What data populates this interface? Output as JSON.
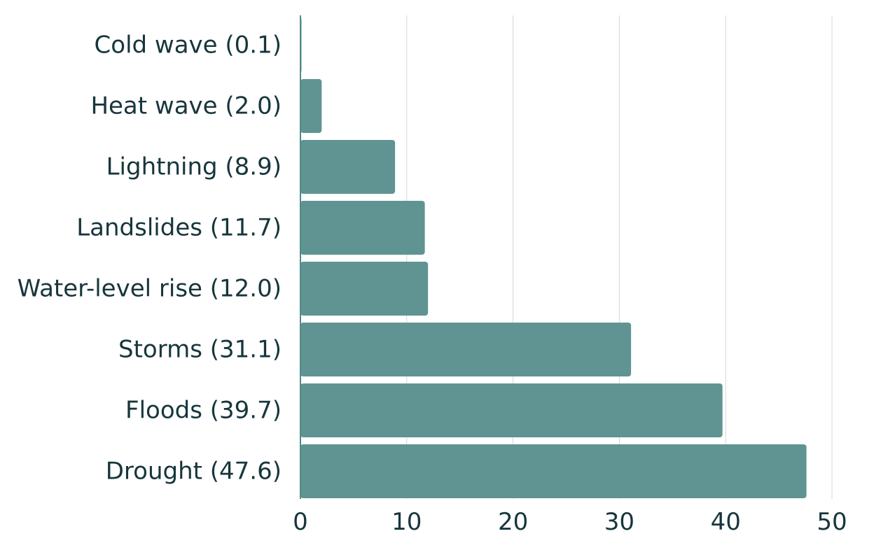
{
  "chart_data": {
    "type": "bar",
    "orientation": "horizontal",
    "categories": [
      "Cold wave (0.1)",
      "Heat wave (2.0)",
      "Lightning (8.9)",
      "Landslides (11.7)",
      "Water-level rise (12.0)",
      "Storms (31.1)",
      "Floods (39.7)",
      "Drought (47.6)"
    ],
    "values": [
      0.1,
      2.0,
      8.9,
      11.7,
      12.0,
      31.1,
      39.7,
      47.6
    ],
    "xlim": [
      0,
      50
    ],
    "xticks": [
      "0",
      "10",
      "20",
      "30",
      "40",
      "50"
    ],
    "title": "",
    "xlabel": "",
    "ylabel": "",
    "grid": "vertical",
    "legend": "none",
    "bar_color": "#5f9492",
    "text_color": "#17363c"
  }
}
